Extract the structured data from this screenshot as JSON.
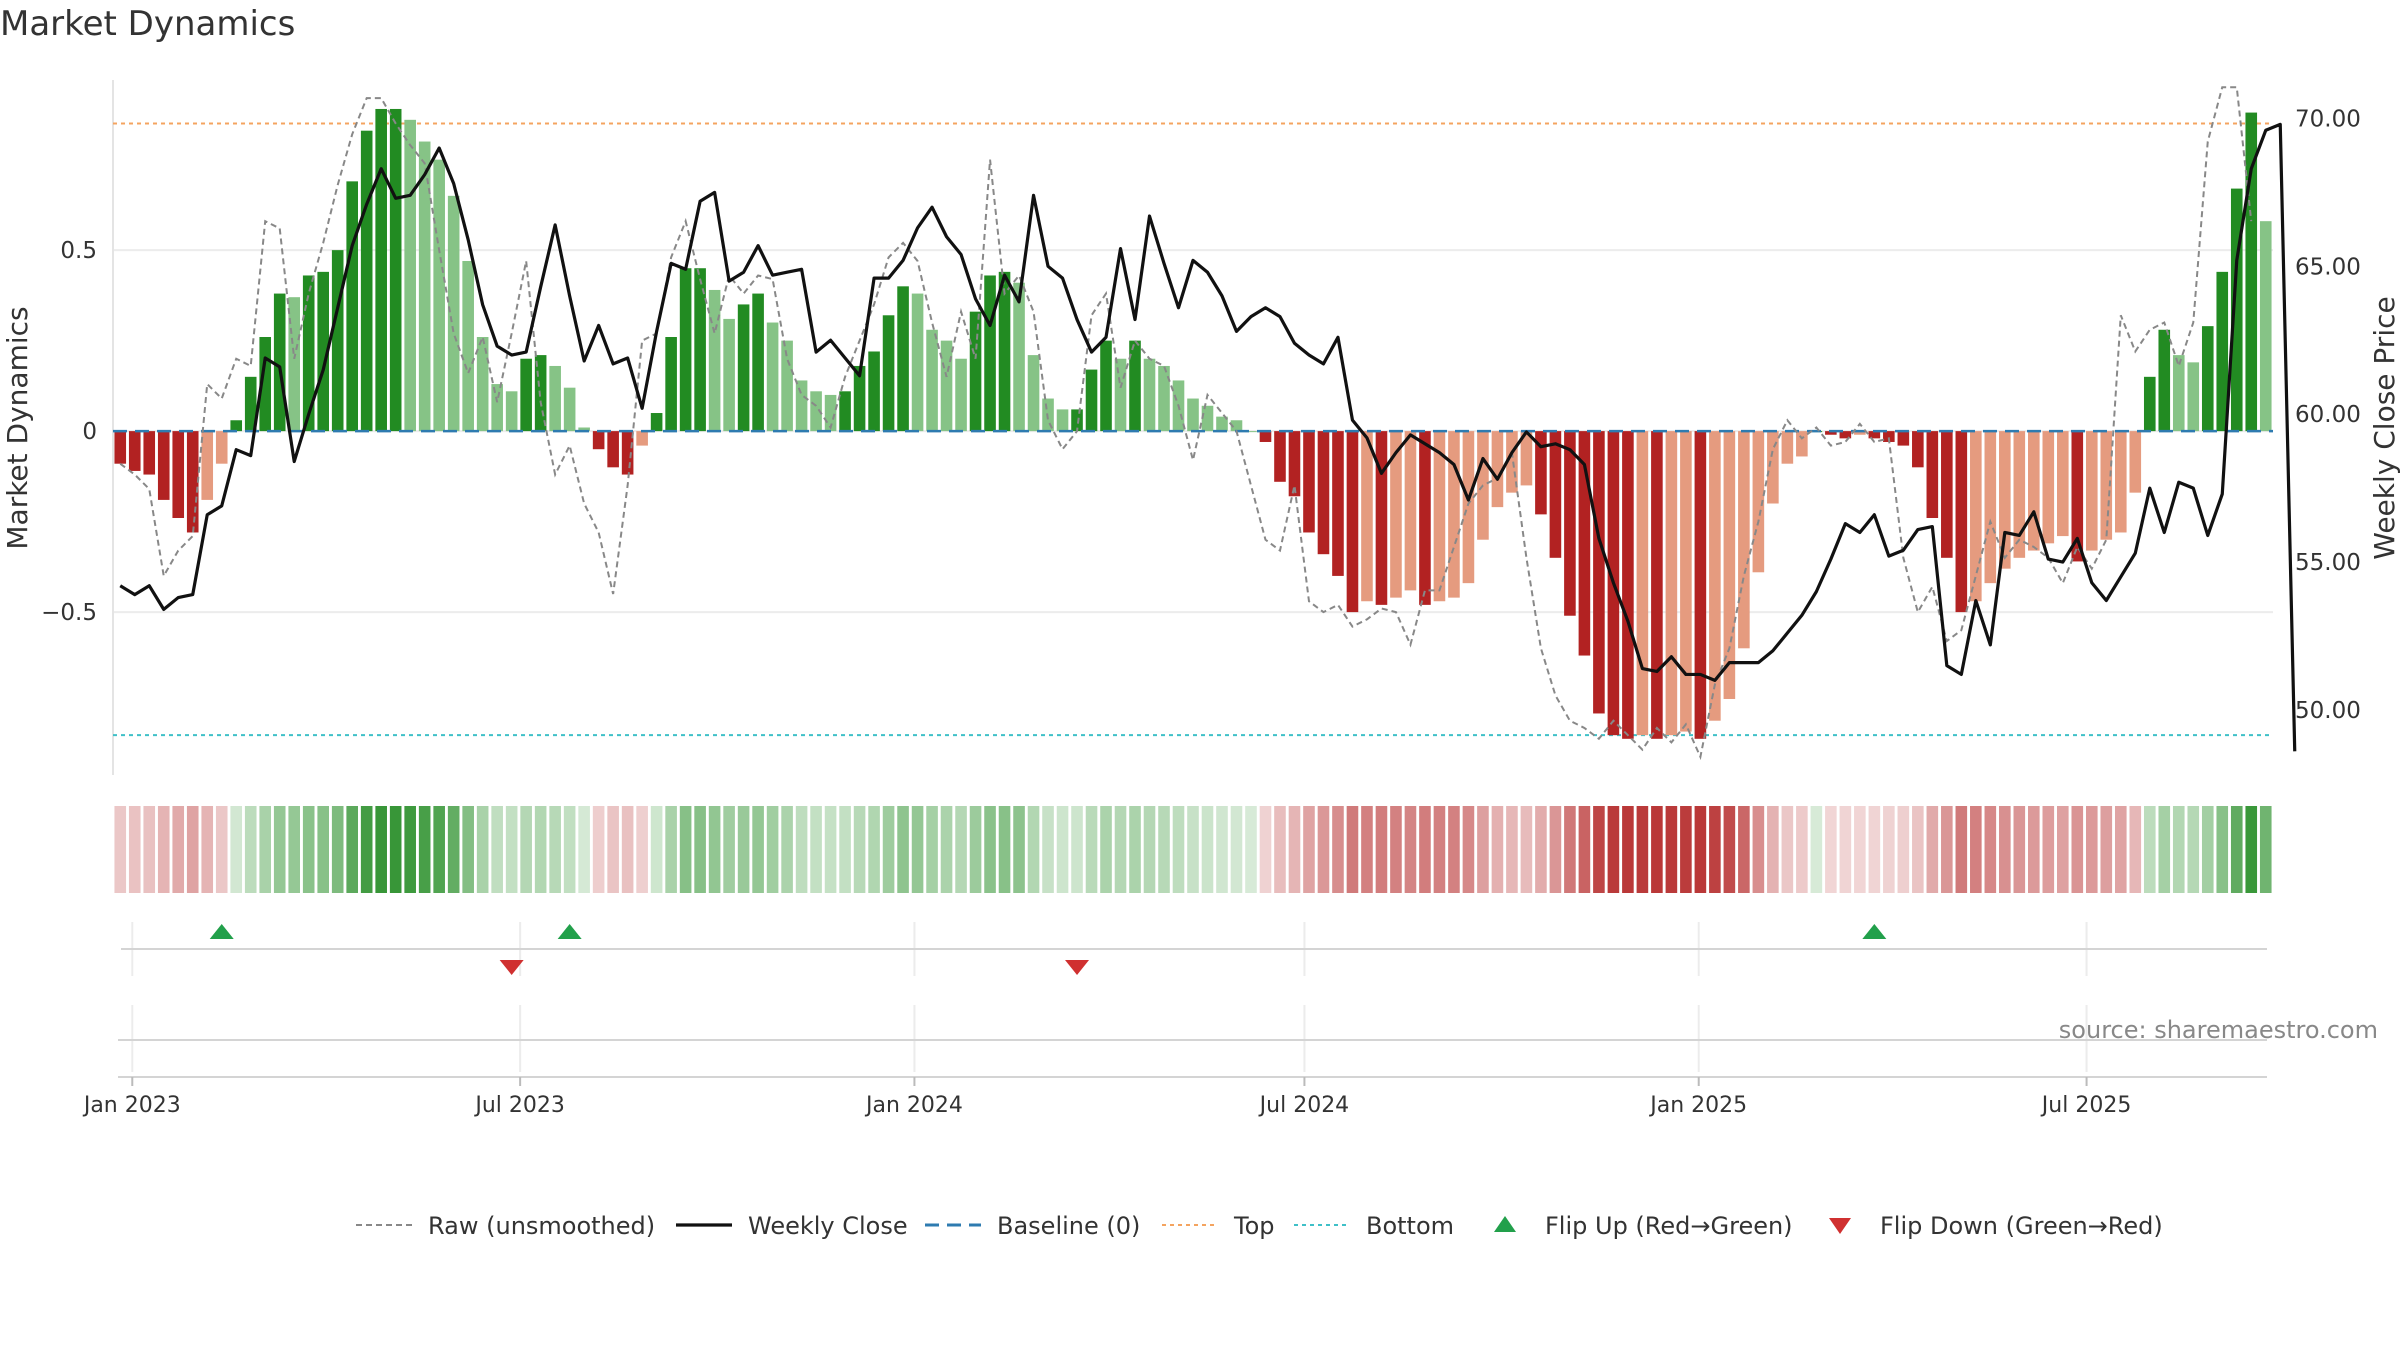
{
  "chart_data": {
    "type": "bar",
    "title": "Market Dynamics",
    "ylabel_left": "Market Dynamics",
    "ylabel_right": "Weekly Close Price",
    "source": "source: sharemaestro.com",
    "left_axis": {
      "ylim": [
        -0.95,
        0.97
      ],
      "ticks": [
        0.5,
        0,
        -0.5
      ],
      "tick_labels": [
        "0.5",
        "0",
        "−0.5"
      ]
    },
    "right_axis": {
      "ylim": [
        47.8,
        71.3
      ],
      "ticks": [
        70,
        65,
        60,
        55,
        50
      ],
      "tick_labels": [
        "70.00",
        "65.00",
        "60.00",
        "55.00",
        "50.00"
      ]
    },
    "x_axis": {
      "start": "2022-12-23",
      "end": "2025-09-26",
      "ticks": [
        "2023-01-01",
        "2023-07-01",
        "2024-01-01",
        "2024-07-01",
        "2025-01-01",
        "2025-07-01"
      ],
      "tick_labels": [
        "Jan 2023",
        "Jul 2023",
        "Jan 2024",
        "Jul 2024",
        "Jan 2025",
        "Jul 2025"
      ]
    },
    "reference_lines": {
      "top": 0.85,
      "bottom": -0.84,
      "baseline": 0
    },
    "colors": {
      "green_strong": "#228b22",
      "green_weak": "#86c386",
      "red_strong": "#b22222",
      "red_weak": "#e59b7f",
      "close": "#111111",
      "raw": "#888888",
      "baseline": "#2e7bb0",
      "top": "#f4a460",
      "bottom": "#3fc0c8",
      "flip_up": "#22a04b",
      "flip_down": "#d03030"
    },
    "dynamics": [
      -0.09,
      -0.11,
      -0.12,
      -0.19,
      -0.24,
      -0.28,
      -0.19,
      -0.09,
      0.03,
      0.15,
      0.26,
      0.38,
      0.37,
      0.43,
      0.44,
      0.5,
      0.69,
      0.83,
      0.89,
      0.89,
      0.86,
      0.8,
      0.75,
      0.65,
      0.47,
      0.26,
      0.13,
      0.11,
      0.2,
      0.21,
      0.18,
      0.12,
      0.01,
      -0.05,
      -0.1,
      -0.12,
      -0.04,
      0.05,
      0.26,
      0.45,
      0.45,
      0.39,
      0.31,
      0.35,
      0.38,
      0.3,
      0.25,
      0.14,
      0.11,
      0.1,
      0.11,
      0.18,
      0.22,
      0.32,
      0.4,
      0.38,
      0.28,
      0.25,
      0.2,
      0.33,
      0.43,
      0.44,
      0.41,
      0.21,
      0.09,
      0.06,
      0.06,
      0.17,
      0.25,
      0.2,
      0.25,
      0.2,
      0.18,
      0.14,
      0.09,
      0.07,
      0.04,
      0.03,
      0.0,
      -0.03,
      -0.14,
      -0.18,
      -0.28,
      -0.34,
      -0.4,
      -0.5,
      -0.47,
      -0.48,
      -0.46,
      -0.44,
      -0.48,
      -0.47,
      -0.46,
      -0.42,
      -0.3,
      -0.21,
      -0.17,
      -0.15,
      -0.23,
      -0.35,
      -0.51,
      -0.62,
      -0.78,
      -0.84,
      -0.85,
      -0.84,
      -0.85,
      -0.84,
      -0.83,
      -0.85,
      -0.8,
      -0.74,
      -0.6,
      -0.39,
      -0.2,
      -0.09,
      -0.07,
      0.0,
      -0.01,
      -0.02,
      -0.01,
      -0.02,
      -0.03,
      -0.04,
      -0.1,
      -0.24,
      -0.35,
      -0.5,
      -0.47,
      -0.42,
      -0.38,
      -0.35,
      -0.33,
      -0.31,
      -0.29,
      -0.36,
      -0.33,
      -0.3,
      -0.28,
      -0.17,
      0.15,
      0.28,
      0.21,
      0.19,
      0.29,
      0.44,
      0.67,
      0.88,
      0.58
    ],
    "weekly_close": [
      54.2,
      53.9,
      54.2,
      53.4,
      53.8,
      53.9,
      56.6,
      56.9,
      58.8,
      58.6,
      61.9,
      61.6,
      58.4,
      60.0,
      61.5,
      63.6,
      65.7,
      67.1,
      68.3,
      67.3,
      67.4,
      68.1,
      69.0,
      67.8,
      65.9,
      63.7,
      62.3,
      62.0,
      62.1,
      64.3,
      66.4,
      64.0,
      61.8,
      63.0,
      61.7,
      61.9,
      60.2,
      62.8,
      65.1,
      64.9,
      67.2,
      67.5,
      64.5,
      64.8,
      65.7,
      64.7,
      64.8,
      64.9,
      62.1,
      62.5,
      61.9,
      61.3,
      64.6,
      64.6,
      65.2,
      66.3,
      67.0,
      66.0,
      65.4,
      63.9,
      63.0,
      64.7,
      63.8,
      67.4,
      65.0,
      64.6,
      63.2,
      62.1,
      62.6,
      65.6,
      63.2,
      66.7,
      65.1,
      63.6,
      65.2,
      64.8,
      64.0,
      62.8,
      63.3,
      63.6,
      63.3,
      62.4,
      62.0,
      61.7,
      62.6,
      59.8,
      59.2,
      58.0,
      58.7,
      59.3,
      59.0,
      58.7,
      58.3,
      57.1,
      58.5,
      57.8,
      58.7,
      59.4,
      58.9,
      59.0,
      58.8,
      58.3,
      55.8,
      54.3,
      53.0,
      51.4,
      51.3,
      51.8,
      51.2,
      51.2,
      51.0,
      51.6,
      51.6,
      51.6,
      52.0,
      52.6,
      53.2,
      54.0,
      55.1,
      56.3,
      56.0,
      56.6,
      55.2,
      55.4,
      56.1,
      56.2,
      51.5,
      51.2,
      53.7,
      52.2,
      56.0,
      55.9,
      56.7,
      55.1,
      55.0,
      55.8,
      54.3,
      53.7,
      54.5,
      55.3,
      57.5,
      56.0,
      57.7,
      57.5,
      55.9,
      57.3,
      65.2,
      68.3,
      69.6,
      69.8,
      48.6
    ],
    "raw": [
      -0.09,
      -0.12,
      -0.16,
      -0.4,
      -0.33,
      -0.29,
      0.13,
      0.09,
      0.2,
      0.18,
      0.58,
      0.56,
      0.2,
      0.38,
      0.52,
      0.68,
      0.82,
      0.92,
      0.92,
      0.85,
      0.79,
      0.74,
      0.5,
      0.27,
      0.16,
      0.26,
      0.08,
      0.27,
      0.47,
      0.08,
      -0.12,
      -0.04,
      -0.2,
      -0.28,
      -0.45,
      -0.15,
      0.25,
      0.27,
      0.48,
      0.58,
      0.42,
      0.27,
      0.43,
      0.38,
      0.43,
      0.42,
      0.2,
      0.1,
      0.07,
      0.01,
      0.15,
      0.25,
      0.35,
      0.48,
      0.52,
      0.47,
      0.3,
      0.15,
      0.33,
      0.2,
      0.75,
      0.38,
      0.43,
      0.33,
      0.03,
      -0.05,
      0.0,
      0.32,
      0.38,
      0.12,
      0.25,
      0.2,
      0.18,
      0.07,
      -0.08,
      0.1,
      0.05,
      0.0,
      -0.15,
      -0.3,
      -0.33,
      -0.15,
      -0.47,
      -0.5,
      -0.48,
      -0.54,
      -0.52,
      -0.49,
      -0.5,
      -0.59,
      -0.44,
      -0.44,
      -0.32,
      -0.2,
      -0.15,
      -0.13,
      -0.06,
      -0.35,
      -0.6,
      -0.73,
      -0.8,
      -0.82,
      -0.85,
      -0.8,
      -0.84,
      -0.88,
      -0.82,
      -0.86,
      -0.81,
      -0.9,
      -0.7,
      -0.6,
      -0.4,
      -0.25,
      -0.05,
      0.03,
      -0.02,
      0.01,
      -0.04,
      -0.03,
      0.02,
      -0.03,
      -0.02,
      -0.35,
      -0.5,
      -0.43,
      -0.58,
      -0.55,
      -0.4,
      -0.25,
      -0.35,
      -0.3,
      -0.32,
      -0.35,
      -0.42,
      -0.32,
      -0.38,
      -0.3,
      0.32,
      0.22,
      0.28,
      0.3,
      0.18,
      0.3,
      0.8,
      0.95,
      0.95,
      0.58
    ],
    "flip_up_weeks": [
      7,
      31,
      121
    ],
    "flip_down_weeks": [
      27,
      66
    ]
  },
  "legend": {
    "items": [
      {
        "label": "Raw (unsmoothed)",
        "icon": "dashed-gray-line"
      },
      {
        "label": "Weekly Close",
        "icon": "solid-black-line"
      },
      {
        "label": "Baseline (0)",
        "icon": "dashed-blue-line"
      },
      {
        "label": "Top",
        "icon": "dotted-orange-line"
      },
      {
        "label": "Bottom",
        "icon": "dotted-cyan-line"
      },
      {
        "label": "Flip Up (Red→Green)",
        "icon": "green-up-triangle"
      },
      {
        "label": "Flip Down (Green→Red)",
        "icon": "red-down-triangle"
      }
    ]
  }
}
